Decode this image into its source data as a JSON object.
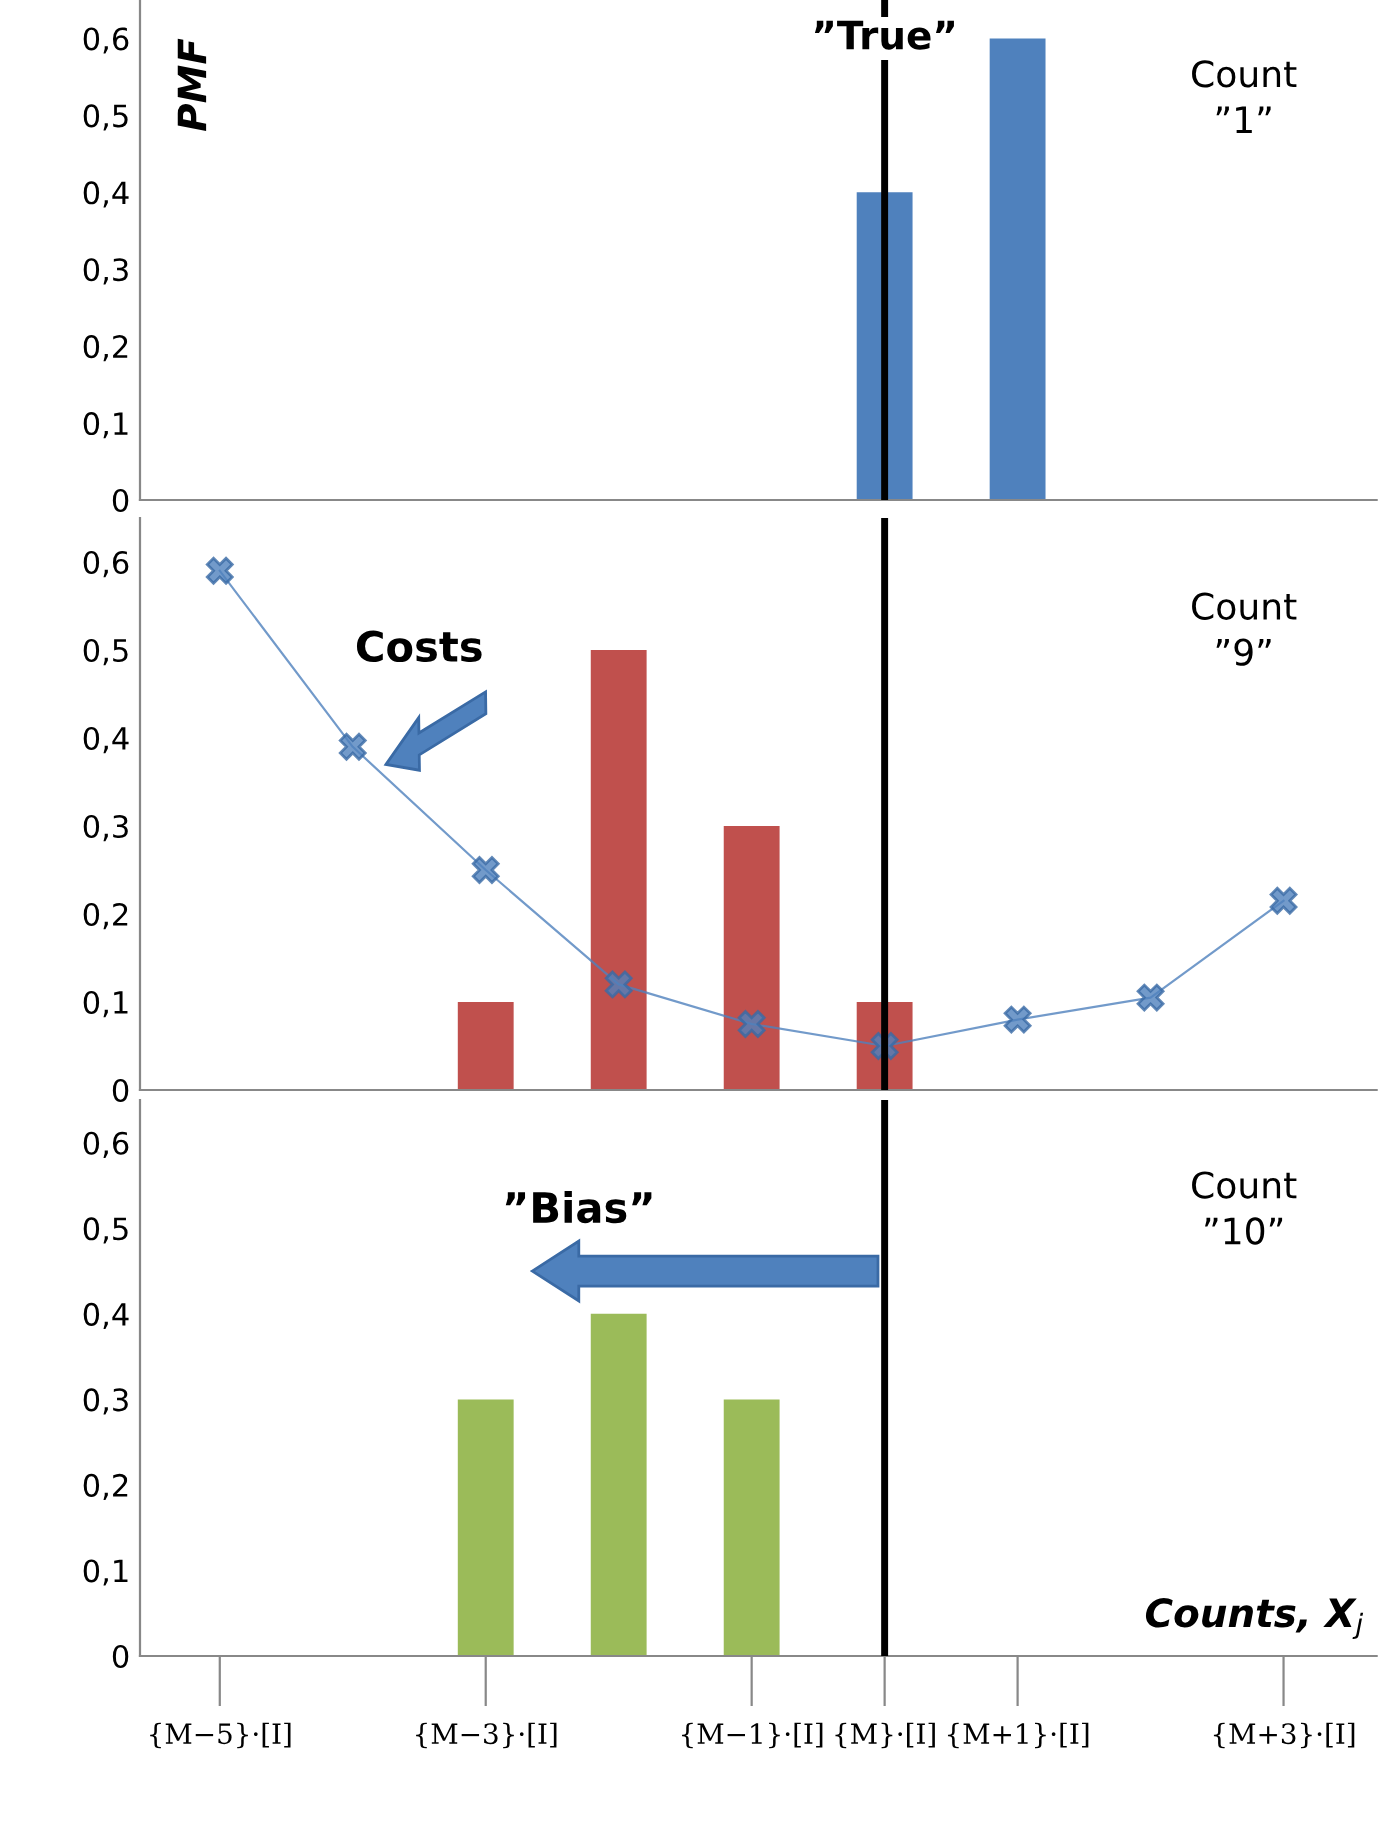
{
  "chart_data": [
    {
      "type": "bar",
      "ylabel": "PMF",
      "categories": [
        "{M−5}·[I]",
        null,
        "{M−3}·[I]",
        null,
        "{M−1}·[I]",
        "{M}·[I]",
        "{M+1}·[I]",
        null,
        "{M+3}·[I]"
      ],
      "values": [
        null,
        null,
        null,
        null,
        null,
        0.4,
        0.6,
        null,
        null
      ],
      "color": "#4f81bd",
      "ylim": [
        0,
        0.65
      ],
      "yticks": [
        0,
        {
          "value": 0.1,
          "label": "0,1"
        },
        {
          "value": 0.2,
          "label": "0,2"
        },
        {
          "value": 0.3,
          "label": "0,3"
        },
        {
          "value": 0.4,
          "label": "0,4"
        },
        {
          "value": 0.5,
          "label": "0,5"
        },
        {
          "value": 0.6,
          "label": "0,6"
        }
      ],
      "tick_labels": "y",
      "grid": false,
      "legend": false,
      "ref_lines": [
        {
          "axis": "x",
          "value": "{M}·[I]",
          "label": "”True”",
          "color": "#000000"
        }
      ],
      "annotations": [
        "Count\n”1”"
      ]
    },
    {
      "type": "bar",
      "categories": [
        "{M−5}·[I]",
        null,
        "{M−3}·[I]",
        null,
        "{M−1}·[I]",
        "{M}·[I]",
        "{M+1}·[I]",
        null,
        "{M+3}·[I]"
      ],
      "ylim": [
        0,
        0.65
      ],
      "series": [
        {
          "type": "bar",
          "color": "#c0504d",
          "values": [
            null,
            null,
            0.1,
            0.5,
            0.3,
            0.1,
            null,
            null,
            null
          ]
        },
        {
          "type": "line",
          "color": "#4f81bd",
          "values": [
            0.59,
            0.39,
            0.25,
            0.12,
            0.075,
            0.05,
            0.08,
            0.105,
            0.215
          ],
          "marker": "cross"
        }
      ],
      "yticks": [
        0,
        {
          "value": 0.1,
          "label": "0,1"
        },
        {
          "value": 0.2,
          "label": "0,2"
        },
        {
          "value": 0.3,
          "label": "0,3"
        },
        {
          "value": 0.4,
          "label": "0,4"
        },
        {
          "value": 0.5,
          "label": "0,5"
        },
        {
          "value": 0.6,
          "label": "0,6"
        }
      ],
      "tick_labels": "y",
      "grid": false,
      "legend": false,
      "ref_lines": [
        {
          "axis": "x",
          "value": "{M}·[I]",
          "color": "#000000"
        }
      ],
      "annotations": [
        "Costs",
        "Count\n”9”"
      ]
    },
    {
      "type": "bar",
      "categories": [
        "{M−5}·[I]",
        null,
        "{M−3}·[I]",
        null,
        "{M−1}·[I]",
        "{M}·[I]",
        "{M+1}·[I]",
        null,
        "{M+3}·[I]"
      ],
      "values": [
        null,
        null,
        0.3,
        0.4,
        0.3,
        null,
        null,
        null,
        null
      ],
      "color": "#9bbb59",
      "ylim": [
        0,
        0.65
      ],
      "xlabel": "Counts, X$_{j}$",
      "yticks": [
        0,
        {
          "value": 0.1,
          "label": "0,1"
        },
        {
          "value": 0.2,
          "label": "0,2"
        },
        {
          "value": 0.3,
          "label": "0,3"
        },
        {
          "value": 0.4,
          "label": "0,4"
        },
        {
          "value": 0.5,
          "label": "0,5"
        },
        {
          "value": 0.6,
          "label": "0,6"
        }
      ],
      "grid": false,
      "legend": false,
      "ref_lines": [
        {
          "axis": "x",
          "value": "{M}·[I]",
          "color": "#000000"
        }
      ],
      "annotations": [
        "”Bias”",
        "Count\n”10”"
      ]
    }
  ]
}
